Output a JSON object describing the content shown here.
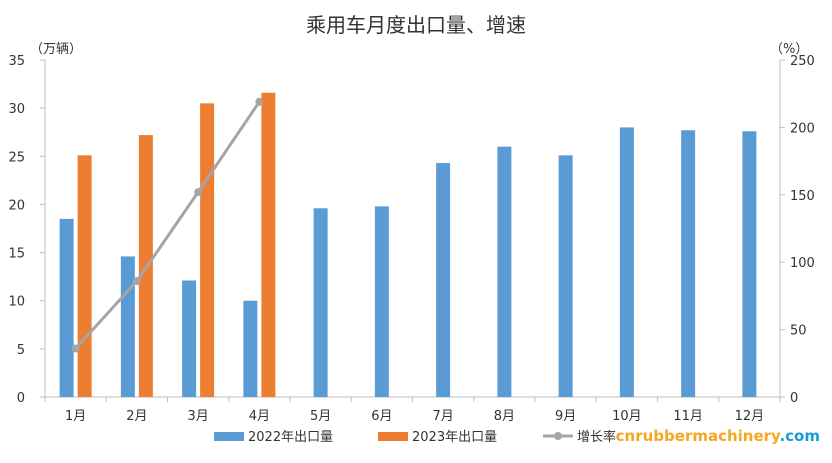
{
  "chart_data": {
    "type": "bar",
    "title": "乘用车月度出口量、增速",
    "y_left_unit": "（万辆）",
    "y_right_unit": "（%）",
    "categories": [
      "1月",
      "2月",
      "3月",
      "4月",
      "5月",
      "6月",
      "7月",
      "8月",
      "9月",
      "10月",
      "11月",
      "12月"
    ],
    "y_left_ticks": [
      "0",
      "5",
      "10",
      "15",
      "20",
      "25",
      "30",
      "35"
    ],
    "y_right_ticks": [
      "0",
      "50",
      "100",
      "150",
      "200",
      "250"
    ],
    "y_left_lim": [
      0,
      35
    ],
    "y_right_lim": [
      0,
      250
    ],
    "series": [
      {
        "name": "2022年出口量",
        "kind": "bar",
        "axis": "left",
        "color": "#5b9bd5",
        "values": [
          18.5,
          14.6,
          12.1,
          10.0,
          19.6,
          19.8,
          24.3,
          26.0,
          25.1,
          28.0,
          27.7,
          27.6
        ]
      },
      {
        "name": "2023年出口量",
        "kind": "bar",
        "axis": "left",
        "color": "#ed7d31",
        "values": [
          25.1,
          27.2,
          30.5,
          31.6,
          null,
          null,
          null,
          null,
          null,
          null,
          null,
          null
        ]
      },
      {
        "name": "增长率",
        "kind": "line",
        "axis": "right",
        "color": "#a5a5a5",
        "values": [
          36,
          86,
          152,
          219,
          null,
          null,
          null,
          null,
          null,
          null,
          null,
          null
        ]
      }
    ],
    "grid": false,
    "legend_position": "bottom"
  },
  "watermark": {
    "text": "cnrubbermachinery.com",
    "color": "#f5a623",
    "accent_text": ".com",
    "accent_color": "#1a9bd8"
  }
}
